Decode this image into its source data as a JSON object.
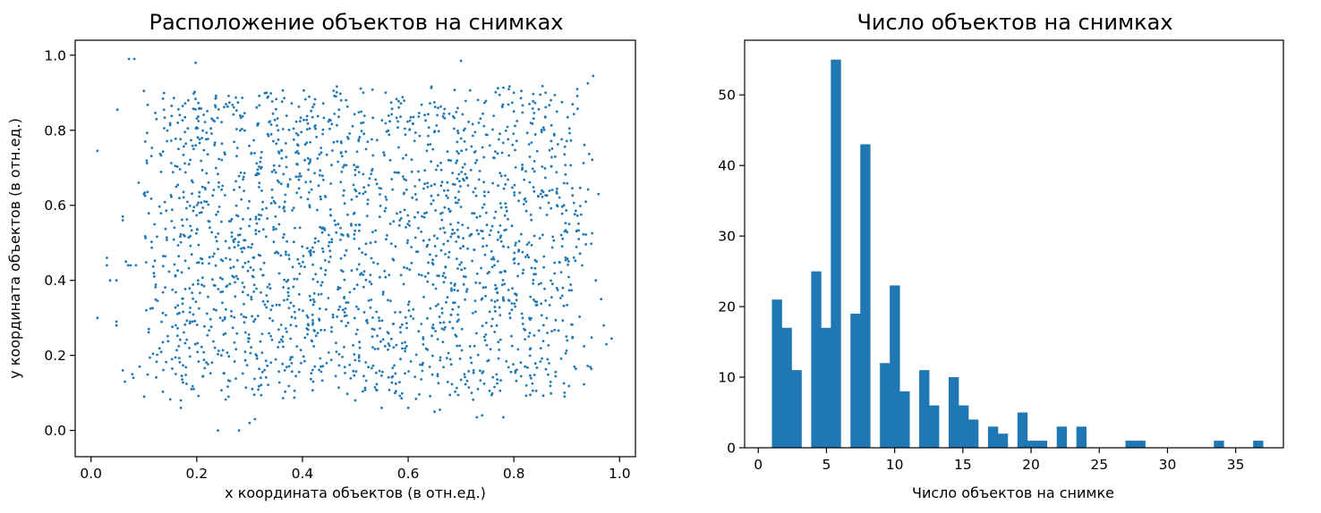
{
  "chart_data": [
    {
      "type": "scatter",
      "title": "Расположение объектов на снимках",
      "xlabel": "x координата объектов (в отн.ед.)",
      "ylabel": "y координата объектов (в отн.ед.)",
      "xlim": [
        -0.03,
        1.03
      ],
      "ylim": [
        -0.07,
        1.04
      ],
      "xticks": [
        "0.0",
        "0.2",
        "0.4",
        "0.6",
        "0.8",
        "1.0"
      ],
      "xtick_values": [
        0.0,
        0.2,
        0.4,
        0.6,
        0.8,
        1.0
      ],
      "yticks": [
        "0.0",
        "0.2",
        "0.4",
        "0.6",
        "0.8",
        "1.0"
      ],
      "ytick_values": [
        0.0,
        0.2,
        0.4,
        0.6,
        0.8,
        1.0
      ],
      "color": "#1f77b4",
      "point_count": 2100,
      "points": [
        [
          0.012,
          0.745
        ],
        [
          0.012,
          0.3
        ],
        [
          0.03,
          0.46
        ],
        [
          0.03,
          0.44
        ],
        [
          0.036,
          0.4
        ],
        [
          0.048,
          0.4
        ],
        [
          0.048,
          0.29
        ],
        [
          0.048,
          0.28
        ],
        [
          0.05,
          0.855
        ],
        [
          0.06,
          0.16
        ],
        [
          0.06,
          0.57
        ],
        [
          0.06,
          0.56
        ],
        [
          0.064,
          0.13
        ],
        [
          0.066,
          0.45
        ],
        [
          0.07,
          0.44
        ],
        [
          0.072,
          0.99
        ],
        [
          0.075,
          0.44
        ],
        [
          0.078,
          0.15
        ],
        [
          0.08,
          0.14
        ],
        [
          0.082,
          0.99
        ],
        [
          0.085,
          0.44
        ],
        [
          0.09,
          0.66
        ],
        [
          0.092,
          0.17
        ],
        [
          0.1,
          0.905
        ],
        [
          0.1,
          0.63
        ],
        [
          0.17,
          0.06
        ],
        [
          0.17,
          0.08
        ],
        [
          0.19,
          0.11
        ],
        [
          0.198,
          0.98
        ],
        [
          0.24,
          0.0
        ],
        [
          0.26,
          0.09
        ],
        [
          0.28,
          0.0
        ],
        [
          0.3,
          0.02
        ],
        [
          0.31,
          0.03
        ],
        [
          0.5,
          0.08
        ],
        [
          0.55,
          0.06
        ],
        [
          0.6,
          0.06
        ],
        [
          0.65,
          0.05
        ],
        [
          0.66,
          0.055
        ],
        [
          0.7,
          0.985
        ],
        [
          0.73,
          0.035
        ],
        [
          0.74,
          0.04
        ],
        [
          0.78,
          0.035
        ],
        [
          0.8,
          0.9
        ],
        [
          0.85,
          0.895
        ],
        [
          0.86,
          0.9
        ],
        [
          0.87,
          0.88
        ],
        [
          0.92,
          0.91
        ],
        [
          0.94,
          0.925
        ],
        [
          0.95,
          0.945
        ],
        [
          0.955,
          0.4
        ],
        [
          0.96,
          0.63
        ],
        [
          0.965,
          0.35
        ],
        [
          0.97,
          0.28
        ],
        [
          0.975,
          0.23
        ],
        [
          0.985,
          0.245
        ]
      ]
    },
    {
      "type": "bar",
      "title": "Число объектов на снимках",
      "xlabel": "Число объектов на снимке",
      "ylabel": "",
      "xlim": [
        -1.0,
        38.5
      ],
      "ylim": [
        0,
        57.75
      ],
      "xticks": [
        "0",
        "5",
        "10",
        "15",
        "20",
        "25",
        "30",
        "35"
      ],
      "xtick_values": [
        0,
        5,
        10,
        15,
        20,
        25,
        30,
        35
      ],
      "yticks": [
        "0",
        "10",
        "20",
        "30",
        "40",
        "50"
      ],
      "ytick_values": [
        0,
        10,
        20,
        30,
        40,
        50
      ],
      "color": "#1f77b4",
      "bin_width": 0.72,
      "x": [
        1.0,
        1.72,
        2.44,
        3.16,
        3.88,
        4.6,
        5.32,
        6.04,
        6.76,
        7.48,
        8.2,
        8.92,
        9.64,
        10.36,
        11.08,
        11.8,
        12.52,
        13.24,
        13.96,
        14.68,
        15.4,
        16.12,
        16.84,
        17.56,
        18.28,
        19.0,
        19.72,
        20.44,
        21.16,
        21.88,
        22.6,
        23.32,
        24.04,
        24.76,
        25.48,
        26.2,
        26.92,
        27.64,
        28.36,
        29.08,
        29.8,
        30.52,
        31.24,
        31.96,
        32.68,
        33.4,
        34.12,
        34.84,
        35.56,
        36.28
      ],
      "values": [
        21,
        17,
        11,
        0,
        25,
        17,
        55,
        0,
        19,
        43,
        0,
        12,
        23,
        8,
        0,
        11,
        6,
        0,
        10,
        6,
        4,
        0,
        3,
        2,
        0,
        5,
        1,
        1,
        0,
        3,
        0,
        3,
        0,
        0,
        0,
        0,
        1,
        1,
        0,
        0,
        0,
        0,
        0,
        0,
        0,
        1,
        0,
        0,
        0,
        1
      ]
    }
  ]
}
